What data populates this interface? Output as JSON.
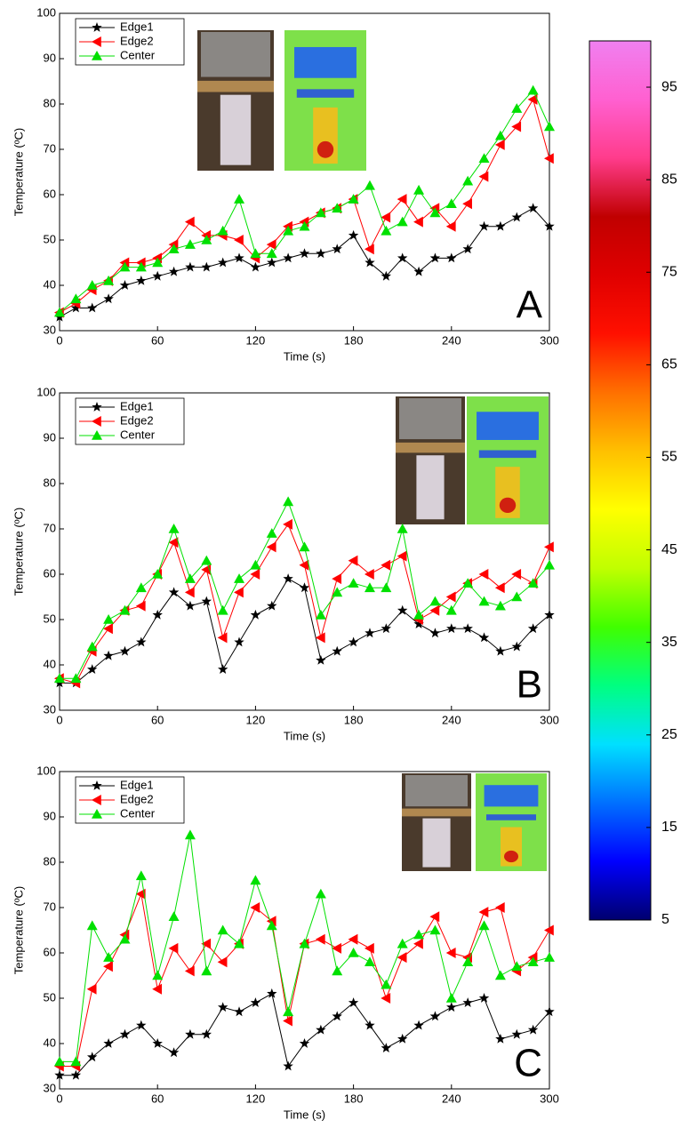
{
  "chart_data": [
    {
      "type": "line",
      "label": "A",
      "x_label": "Time (s)",
      "y_label": "Temperature (ºC)",
      "x": [
        0,
        10,
        20,
        30,
        40,
        50,
        60,
        70,
        80,
        90,
        100,
        110,
        120,
        130,
        140,
        150,
        160,
        170,
        180,
        190,
        200,
        210,
        220,
        230,
        240,
        250,
        260,
        270,
        280,
        290,
        300
      ],
      "xlim": [
        0,
        300
      ],
      "xticks": [
        0,
        60,
        120,
        180,
        240,
        300
      ],
      "ylim": [
        30,
        100
      ],
      "yticks": [
        30,
        40,
        50,
        60,
        70,
        80,
        90,
        100
      ],
      "legend": "top-left",
      "series": [
        {
          "name": "Edge1",
          "color": "#000000",
          "marker": "star",
          "values": [
            33,
            35,
            35,
            37,
            40,
            41,
            42,
            43,
            44,
            44,
            45,
            46,
            44,
            45,
            46,
            47,
            47,
            48,
            51,
            45,
            42,
            46,
            43,
            46,
            46,
            48,
            53,
            53,
            55,
            57,
            53
          ]
        },
        {
          "name": "Edge2",
          "color": "#ff0000",
          "marker": "triangle-left",
          "values": [
            34,
            36,
            39,
            41,
            45,
            45,
            46,
            49,
            54,
            51,
            51,
            50,
            46,
            49,
            53,
            54,
            56,
            57,
            59,
            48,
            55,
            59,
            54,
            57,
            53,
            58,
            64,
            71,
            75,
            81,
            68
          ]
        },
        {
          "name": "Center",
          "color": "#00e000",
          "marker": "triangle-up",
          "values": [
            34,
            37,
            40,
            41,
            44,
            44,
            45,
            48,
            49,
            50,
            52,
            59,
            47,
            47,
            52,
            53,
            56,
            57,
            59,
            62,
            52,
            54,
            61,
            56,
            58,
            63,
            68,
            73,
            79,
            83,
            75
          ]
        }
      ]
    },
    {
      "type": "line",
      "label": "B",
      "x_label": "Time (s)",
      "y_label": "Temperature (ºC)",
      "x": [
        0,
        10,
        20,
        30,
        40,
        50,
        60,
        70,
        80,
        90,
        100,
        110,
        120,
        130,
        140,
        150,
        160,
        170,
        180,
        190,
        200,
        210,
        220,
        230,
        240,
        250,
        260,
        270,
        280,
        290,
        300
      ],
      "xlim": [
        0,
        300
      ],
      "xticks": [
        0,
        60,
        120,
        180,
        240,
        300
      ],
      "ylim": [
        30,
        100
      ],
      "yticks": [
        30,
        40,
        50,
        60,
        70,
        80,
        90,
        100
      ],
      "legend": "top-left",
      "series": [
        {
          "name": "Edge1",
          "color": "#000000",
          "marker": "star",
          "values": [
            36,
            36,
            39,
            42,
            43,
            45,
            51,
            56,
            53,
            54,
            39,
            45,
            51,
            53,
            59,
            57,
            41,
            43,
            45,
            47,
            48,
            52,
            49,
            47,
            48,
            48,
            46,
            43,
            44,
            48,
            51
          ]
        },
        {
          "name": "Edge2",
          "color": "#ff0000",
          "marker": "triangle-left",
          "values": [
            37,
            36,
            43,
            48,
            52,
            53,
            60,
            67,
            56,
            61,
            46,
            56,
            60,
            66,
            71,
            62,
            46,
            59,
            63,
            60,
            62,
            64,
            50,
            52,
            55,
            58,
            60,
            57,
            60,
            58,
            66
          ]
        },
        {
          "name": "Center",
          "color": "#00e000",
          "marker": "triangle-up",
          "values": [
            37,
            37,
            44,
            50,
            52,
            57,
            60,
            70,
            59,
            63,
            52,
            59,
            62,
            69,
            76,
            66,
            51,
            56,
            58,
            57,
            57,
            70,
            51,
            54,
            52,
            58,
            54,
            53,
            55,
            58,
            62
          ]
        }
      ]
    },
    {
      "type": "line",
      "label": "C",
      "x_label": "Time (s)",
      "y_label": "Temperature (ºC)",
      "x": [
        0,
        10,
        20,
        30,
        40,
        50,
        60,
        70,
        80,
        90,
        100,
        110,
        120,
        130,
        140,
        150,
        160,
        170,
        180,
        190,
        200,
        210,
        220,
        230,
        240,
        250,
        260,
        270,
        280,
        290,
        300
      ],
      "xlim": [
        0,
        300
      ],
      "xticks": [
        0,
        60,
        120,
        180,
        240,
        300
      ],
      "ylim": [
        30,
        100
      ],
      "yticks": [
        30,
        40,
        50,
        60,
        70,
        80,
        90,
        100
      ],
      "legend": "top-left",
      "series": [
        {
          "name": "Edge1",
          "color": "#000000",
          "marker": "star",
          "values": [
            33,
            33,
            37,
            40,
            42,
            44,
            40,
            38,
            42,
            42,
            48,
            47,
            49,
            51,
            35,
            40,
            43,
            46,
            49,
            44,
            39,
            41,
            44,
            46,
            48,
            49,
            50,
            41,
            42,
            43,
            47
          ]
        },
        {
          "name": "Edge2",
          "color": "#ff0000",
          "marker": "triangle-left",
          "values": [
            35,
            35,
            52,
            57,
            64,
            73,
            52,
            61,
            56,
            62,
            58,
            62,
            70,
            67,
            45,
            62,
            63,
            61,
            63,
            61,
            50,
            59,
            62,
            68,
            60,
            59,
            69,
            70,
            56,
            59,
            65
          ]
        },
        {
          "name": "Center",
          "color": "#00e000",
          "marker": "triangle-up",
          "values": [
            36,
            36,
            66,
            59,
            63,
            77,
            55,
            68,
            86,
            56,
            65,
            62,
            76,
            66,
            47,
            62,
            73,
            56,
            60,
            58,
            53,
            62,
            64,
            65,
            50,
            58,
            66,
            55,
            57,
            58,
            59
          ]
        }
      ]
    },
    {
      "type": "colorbar",
      "ylim": [
        5,
        100
      ],
      "yticks": [
        5,
        15,
        25,
        35,
        45,
        55,
        65,
        75,
        85,
        95
      ],
      "colors": [
        "#00006e",
        "#0000ff",
        "#0070ff",
        "#00e0ff",
        "#00ff80",
        "#40ff00",
        "#c0ff00",
        "#ffff00",
        "#ffc000",
        "#ff7000",
        "#ff1000",
        "#e00000",
        "#c00000",
        "#ff3c8c",
        "#ff60d0",
        "#f080f0"
      ]
    }
  ]
}
